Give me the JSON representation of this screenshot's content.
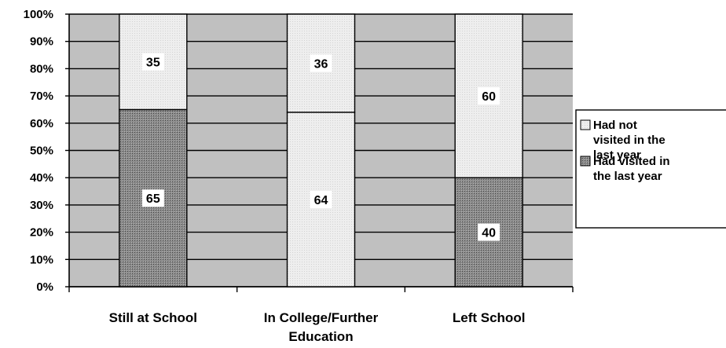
{
  "chart_data": {
    "type": "bar",
    "stacked": true,
    "percent": true,
    "categories": [
      [
        "Still at School"
      ],
      [
        "In College/Further",
        "Education"
      ],
      [
        "Left School"
      ]
    ],
    "series": [
      {
        "name": "Had visited in the last year",
        "legend_lines": [
          "Had visited in",
          "the last year"
        ],
        "values": [
          65,
          64,
          40
        ],
        "fill": "pat-dark"
      },
      {
        "name": "Had not visited in the last year",
        "legend_lines": [
          "Had not",
          "visited in the",
          "last year"
        ],
        "values": [
          35,
          36,
          60
        ],
        "fill": "pat-light"
      }
    ],
    "bar_fill_patterns": [
      [
        "pat-dark",
        "pat-light"
      ],
      [
        "pat-light",
        "pat-light"
      ],
      [
        "pat-dark",
        "pat-light"
      ]
    ],
    "y_ticks": [
      "0%",
      "10%",
      "20%",
      "30%",
      "40%",
      "50%",
      "60%",
      "70%",
      "80%",
      "90%",
      "100%"
    ],
    "ylim": [
      0,
      100
    ],
    "grid": true,
    "plot_background": "#c0c0c0",
    "legend_position": "right",
    "title": "",
    "xlabel": "",
    "ylabel": ""
  }
}
